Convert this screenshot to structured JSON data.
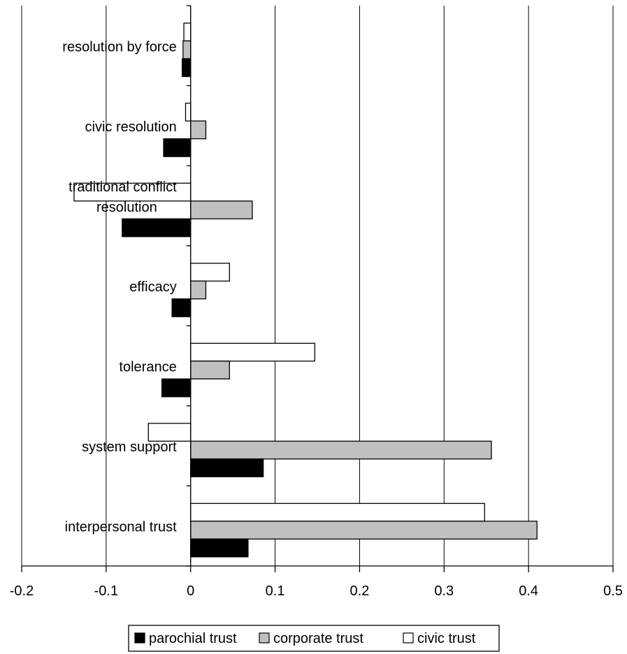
{
  "chart_data": {
    "type": "bar",
    "orientation": "horizontal",
    "categories": [
      "resolution by force",
      "civic resolution",
      "traditional conflict resolution",
      "efficacy",
      "tolerance",
      "system support",
      "interpersonal trust"
    ],
    "category_display": [
      [
        "resolution by force"
      ],
      [
        "civic resolution"
      ],
      [
        "traditional conflict",
        "resolution"
      ],
      [
        "efficacy"
      ],
      [
        "tolerance"
      ],
      [
        "system support"
      ],
      [
        "interpersonal trust"
      ]
    ],
    "series": [
      {
        "name": "civic trust",
        "color": "#ffffff",
        "values": [
          -0.008,
          -0.006,
          -0.138,
          0.046,
          0.147,
          -0.05,
          0.348
        ]
      },
      {
        "name": "corporate trust",
        "color": "#c0c0c0",
        "values": [
          -0.009,
          0.018,
          0.073,
          0.018,
          0.046,
          0.356,
          0.41
        ]
      },
      {
        "name": "parochial trust",
        "color": "#000000",
        "values": [
          -0.01,
          -0.032,
          -0.081,
          -0.022,
          -0.034,
          0.086,
          0.068
        ]
      }
    ],
    "xlim": [
      -0.2,
      0.5
    ],
    "xticks": [
      "-0.2",
      "-0.1",
      "0",
      "0.1",
      "0.2",
      "0.3",
      "0.4",
      "0.5"
    ],
    "xtick_values": [
      -0.2,
      -0.1,
      0,
      0.1,
      0.2,
      0.3,
      0.4,
      0.5
    ],
    "grid": "vertical",
    "legend": {
      "placement": "bottom",
      "order": [
        "parochial trust",
        "corporate trust",
        "civic trust"
      ]
    }
  }
}
